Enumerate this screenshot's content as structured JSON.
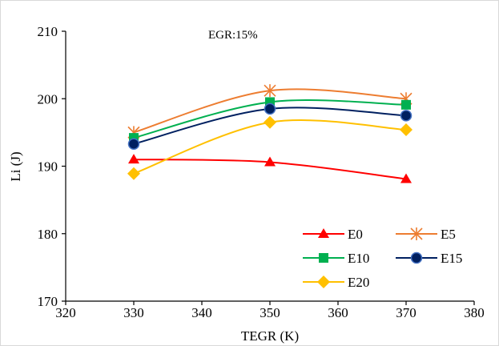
{
  "chart_data": {
    "type": "line",
    "title": "",
    "xlabel": "TEGR (K)",
    "ylabel": "Li (J)",
    "xlim": [
      320,
      380
    ],
    "ylim": [
      170,
      210
    ],
    "xticks": [
      320,
      330,
      340,
      350,
      360,
      370,
      380
    ],
    "yticks": [
      170,
      180,
      190,
      200,
      210
    ],
    "grid": false,
    "smooth": true,
    "legend_position": "bottom-right",
    "annotation": "EGR:15%",
    "x": [
      330,
      350,
      370
    ],
    "series": [
      {
        "name": "E0",
        "values": [
          191.0,
          190.6,
          188.1
        ],
        "color": "#ff0000",
        "marker": "triangle"
      },
      {
        "name": "E5",
        "values": [
          195.0,
          201.2,
          200.0
        ],
        "color": "#ed7d31",
        "marker": "asterisk"
      },
      {
        "name": "E10",
        "values": [
          194.2,
          199.5,
          199.1
        ],
        "color": "#00b050",
        "marker": "square"
      },
      {
        "name": "E15",
        "values": [
          193.3,
          198.5,
          197.5
        ],
        "color": "#002060",
        "marker": "circle"
      },
      {
        "name": "E20",
        "values": [
          188.9,
          196.5,
          195.4
        ],
        "color": "#ffc000",
        "marker": "diamond"
      }
    ]
  }
}
